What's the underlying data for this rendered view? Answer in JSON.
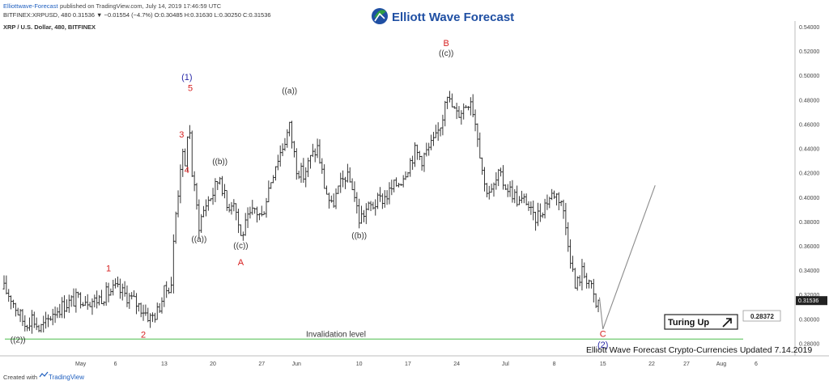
{
  "header": {
    "publisher": "Elliottwave-Forecast",
    "published_on": "published on TradingView.com, July 14, 2019 17:46:59 UTC",
    "ohlc": "BITFINEX:XRPUSD, 480  0.31536  ▼ −0.01554 (−4.7%)  O:0.30485  H:0.31630  L:0.30250  C:0.31536",
    "symbol_line": "XRP / U.S. Dollar, 480, BITFINEX"
  },
  "brand": {
    "name": "Elliott Wave Forecast"
  },
  "footer": {
    "caption": "Elliott Wave Forecast Crypto-Currencies Updated 7.14.2019",
    "created_with": "Created with",
    "tradingview": "TradingView"
  },
  "colors": {
    "bar": "#222222",
    "wave_red": "#d62020",
    "wave_blue": "#2a2aa8",
    "wave_black": "#333333",
    "invalidation_line": "#7ccf7c",
    "projection_line": "#8c8c8c",
    "price_tag_bg": "#222222",
    "brand_blue": "#1f4fa3",
    "brand_green": "#2e9e44"
  },
  "chart_data": {
    "type": "ohlc",
    "symbol": "XRP / U.S. Dollar",
    "interval": "480",
    "exchange": "BITFINEX",
    "ylim": [
      0.27,
      0.545
    ],
    "y_ticks": [
      "0.28000",
      "0.30000",
      "0.32000",
      "0.34000",
      "0.36000",
      "0.38000",
      "0.40000",
      "0.42000",
      "0.44000",
      "0.46000",
      "0.48000",
      "0.50000",
      "0.52000",
      "0.54000"
    ],
    "y_tick_values": [
      0.28,
      0.3,
      0.32,
      0.34,
      0.36,
      0.38,
      0.4,
      0.42,
      0.44,
      0.46,
      0.48,
      0.5,
      0.52,
      0.54
    ],
    "x_ticks": [
      "May",
      "6",
      "13",
      "20",
      "27",
      "Jun",
      "10",
      "17",
      "24",
      "Jul",
      "8",
      "15",
      "22",
      "27",
      "Aug",
      "6"
    ],
    "x_tick_dates": [
      "2019-05-01",
      "2019-05-06",
      "2019-05-13",
      "2019-05-20",
      "2019-05-27",
      "2019-06-01",
      "2019-06-10",
      "2019-06-17",
      "2019-06-24",
      "2019-07-01",
      "2019-07-08",
      "2019-07-15",
      "2019-07-22",
      "2019-07-27",
      "2019-08-01",
      "2019-08-06"
    ],
    "x_range": [
      "2019-04-20",
      "2019-08-11"
    ],
    "path": [
      [
        "2019-04-20",
        0.325
      ],
      [
        "2019-04-21",
        0.318
      ],
      [
        "2019-04-22",
        0.306
      ],
      [
        "2019-04-23",
        0.296
      ],
      [
        "2019-04-24",
        0.302
      ],
      [
        "2019-04-25",
        0.292
      ],
      [
        "2019-04-26",
        0.296
      ],
      [
        "2019-04-27",
        0.306
      ],
      [
        "2019-04-29",
        0.313
      ],
      [
        "2019-05-01",
        0.318
      ],
      [
        "2019-05-03",
        0.315
      ],
      [
        "2019-05-05",
        0.322
      ],
      [
        "2019-05-06",
        0.325
      ],
      [
        "2019-05-08",
        0.318
      ],
      [
        "2019-05-10",
        0.308
      ],
      [
        "2019-05-11",
        0.301
      ],
      [
        "2019-05-12",
        0.306
      ],
      [
        "2019-05-13",
        0.322
      ],
      [
        "2019-05-14",
        0.33
      ],
      [
        "2019-05-14T12:00",
        0.378
      ],
      [
        "2019-05-15",
        0.405
      ],
      [
        "2019-05-15T12:00",
        0.438
      ],
      [
        "2019-05-16",
        0.423
      ],
      [
        "2019-05-16T12:00",
        0.469
      ],
      [
        "2019-05-17",
        0.42
      ],
      [
        "2019-05-18",
        0.378
      ],
      [
        "2019-05-19",
        0.395
      ],
      [
        "2019-05-20",
        0.404
      ],
      [
        "2019-05-21",
        0.418
      ],
      [
        "2019-05-22",
        0.392
      ],
      [
        "2019-05-23",
        0.399
      ],
      [
        "2019-05-24",
        0.368
      ],
      [
        "2019-05-25",
        0.381
      ],
      [
        "2019-05-26",
        0.39
      ],
      [
        "2019-05-27",
        0.384
      ],
      [
        "2019-05-28",
        0.408
      ],
      [
        "2019-05-29",
        0.428
      ],
      [
        "2019-05-30",
        0.442
      ],
      [
        "2019-05-31",
        0.458
      ],
      [
        "2019-06-01",
        0.425
      ],
      [
        "2019-06-02",
        0.418
      ],
      [
        "2019-06-03",
        0.432
      ],
      [
        "2019-06-04",
        0.441
      ],
      [
        "2019-06-05",
        0.41
      ],
      [
        "2019-06-06",
        0.392
      ],
      [
        "2019-06-07",
        0.406
      ],
      [
        "2019-06-08",
        0.418
      ],
      [
        "2019-06-09",
        0.41
      ],
      [
        "2019-06-10",
        0.382
      ],
      [
        "2019-06-11",
        0.39
      ],
      [
        "2019-06-12",
        0.394
      ],
      [
        "2019-06-13",
        0.398
      ],
      [
        "2019-06-14",
        0.402
      ],
      [
        "2019-06-15",
        0.409
      ],
      [
        "2019-06-16",
        0.415
      ],
      [
        "2019-06-17",
        0.426
      ],
      [
        "2019-06-18",
        0.438
      ],
      [
        "2019-06-19",
        0.432
      ],
      [
        "2019-06-20",
        0.44
      ],
      [
        "2019-06-21",
        0.448
      ],
      [
        "2019-06-22",
        0.467
      ],
      [
        "2019-06-22T12:00",
        0.492
      ],
      [
        "2019-06-23",
        0.478
      ],
      [
        "2019-06-24",
        0.468
      ],
      [
        "2019-06-25",
        0.474
      ],
      [
        "2019-06-26",
        0.482
      ],
      [
        "2019-06-27",
        0.452
      ],
      [
        "2019-06-28",
        0.41
      ],
      [
        "2019-06-29",
        0.404
      ],
      [
        "2019-06-30",
        0.418
      ],
      [
        "2019-07-01",
        0.41
      ],
      [
        "2019-07-02",
        0.404
      ],
      [
        "2019-07-03",
        0.396
      ],
      [
        "2019-07-04",
        0.398
      ],
      [
        "2019-07-05",
        0.382
      ],
      [
        "2019-07-06",
        0.388
      ],
      [
        "2019-07-07",
        0.398
      ],
      [
        "2019-07-08",
        0.404
      ],
      [
        "2019-07-09",
        0.398
      ],
      [
        "2019-07-10",
        0.365
      ],
      [
        "2019-07-11",
        0.326
      ],
      [
        "2019-07-12",
        0.339
      ],
      [
        "2019-07-13",
        0.332
      ],
      [
        "2019-07-14",
        0.31
      ],
      [
        "2019-07-14T12:00",
        0.316
      ]
    ],
    "wave_labels": [
      {
        "text": "((2))",
        "date": "2019-04-22",
        "price": 0.281,
        "color": "wave_black"
      },
      {
        "text": "1",
        "date": "2019-05-05",
        "price": 0.3395,
        "color": "wave_red"
      },
      {
        "text": "2",
        "date": "2019-05-10",
        "price": 0.285,
        "color": "wave_red"
      },
      {
        "text": "3",
        "date": "2019-05-15T12:00",
        "price": 0.4495,
        "color": "wave_red"
      },
      {
        "text": "4",
        "date": "2019-05-16T06:00",
        "price": 0.42,
        "color": "wave_red"
      },
      {
        "text": "5",
        "date": "2019-05-16T18:00",
        "price": 0.4875,
        "color": "wave_red"
      },
      {
        "text": "(1)",
        "date": "2019-05-16T06:00",
        "price": 0.4965,
        "color": "wave_blue"
      },
      {
        "text": "((a))",
        "date": "2019-05-18",
        "price": 0.3635,
        "color": "wave_black"
      },
      {
        "text": "((b))",
        "date": "2019-05-21",
        "price": 0.4275,
        "color": "wave_black"
      },
      {
        "text": "((c))",
        "date": "2019-05-24",
        "price": 0.3585,
        "color": "wave_black"
      },
      {
        "text": "A",
        "date": "2019-05-24",
        "price": 0.3445,
        "color": "wave_red"
      },
      {
        "text": "((a))",
        "date": "2019-05-31",
        "price": 0.4855,
        "color": "wave_black"
      },
      {
        "text": "((b))",
        "date": "2019-06-10",
        "price": 0.3665,
        "color": "wave_black"
      },
      {
        "text": "B",
        "date": "2019-06-22T12:00",
        "price": 0.5245,
        "color": "wave_red"
      },
      {
        "text": "((c))",
        "date": "2019-06-22T12:00",
        "price": 0.5165,
        "color": "wave_black"
      },
      {
        "text": "C",
        "date": "2019-07-15",
        "price": 0.2855,
        "color": "wave_red"
      },
      {
        "text": "(2)",
        "date": "2019-07-15",
        "price": 0.2765,
        "color": "wave_blue"
      }
    ],
    "invalidation": {
      "label": "Invalidation level",
      "price": 0.28372
    },
    "projection": {
      "from": [
        "2019-07-15",
        0.292
      ],
      "via": [
        "2019-07-14T12:00",
        0.318
      ],
      "to": [
        "2019-07-22T12:00",
        0.41
      ]
    },
    "price_tags": {
      "last": "0.31536",
      "last_value": 0.31536,
      "invalidation": "0.28372"
    },
    "annotation": {
      "text": "Turing Up"
    }
  }
}
